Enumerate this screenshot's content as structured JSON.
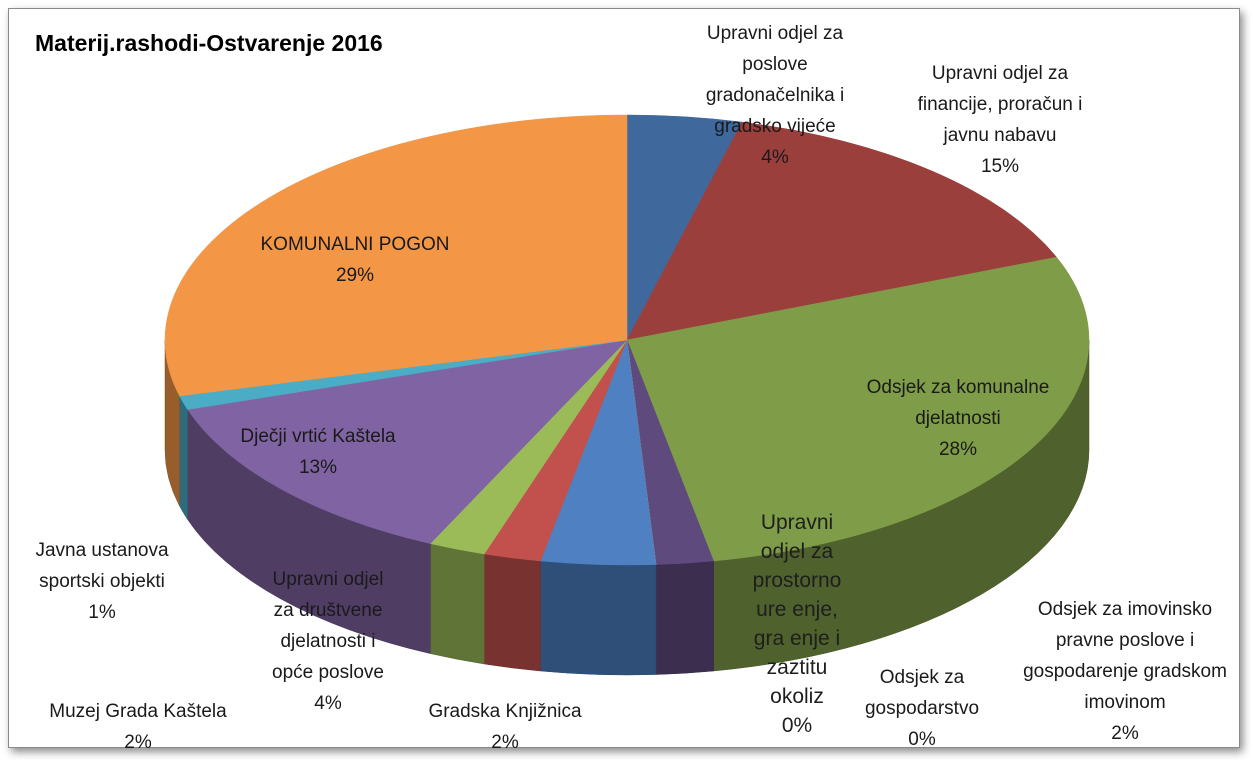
{
  "chart_data": {
    "type": "pie3d",
    "title": "Materij.rashodi-Ostvarenje 2016",
    "categories": [
      "Upravni odjel za poslove gradonačelnika i gradsko vijeće",
      "Upravni odjel za financije, proračun i javnu nabavu",
      "Odsjek za komunalne djelatnosti",
      "Odsjek za imovinsko pravne poslove i gospodarenje gradskom imovinom",
      "Odsjek za gospodarstvo",
      "Upravni odjel za prostorno ure enje, gra enje i zaztitu okoliz",
      "Upravni odjel za društvene djelatnosti i opće poslove",
      "Gradska Knjižnica",
      "Muzej Grada Kaštela",
      "Dječji vrtić Kaštela",
      "Javna ustanova sportski objekti",
      "KOMUNALNI POGON"
    ],
    "values": [
      4,
      15,
      28,
      2,
      0,
      0,
      4,
      2,
      2,
      13,
      1,
      29
    ],
    "value_labels": [
      "4%",
      "15%",
      "28%",
      "2%",
      "0%",
      "0%",
      "4%",
      "2%",
      "2%",
      "13%",
      "1%",
      "29%"
    ],
    "colors": [
      "#3f689c",
      "#9b3f3d",
      "#7f9c48",
      "#5f4a7e",
      "#3d9fbd",
      "#ec8a34",
      "#4e80c2",
      "#c2504d",
      "#9bbb59",
      "#7f63a2",
      "#4bacc6",
      "#f39646"
    ]
  }
}
